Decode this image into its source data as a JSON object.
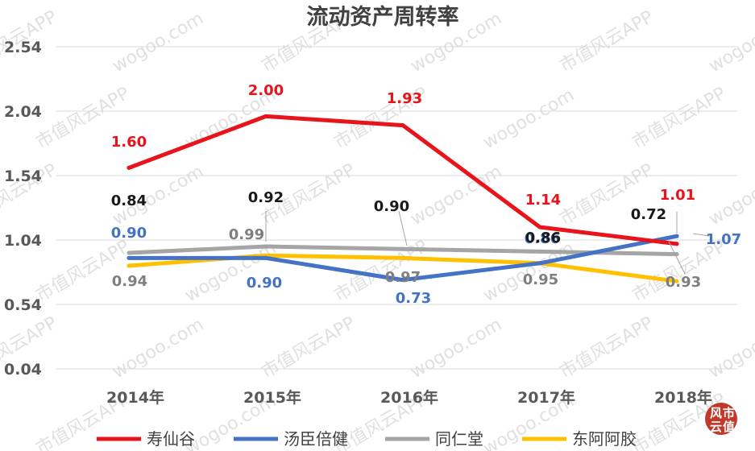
{
  "chart_data": {
    "type": "line",
    "title": "流动资产周转率",
    "xlabel": "",
    "ylabel": "",
    "categories": [
      "2014年",
      "2015年",
      "2016年",
      "2017年",
      "2018年"
    ],
    "yticks": [
      "0.04",
      "0.54",
      "1.04",
      "1.54",
      "2.04",
      "2.54"
    ],
    "ylim": [
      0.04,
      2.54
    ],
    "grid": true,
    "legend_position": "bottom",
    "series": [
      {
        "name": "寿仙谷",
        "color": "#e8141b",
        "values": [
          1.6,
          2.0,
          1.93,
          1.14,
          1.01
        ],
        "labels": [
          "1.60",
          "2.00",
          "1.93",
          "1.14",
          "1.01"
        ]
      },
      {
        "name": "汤臣倍健",
        "color": "#4472c4",
        "values": [
          0.9,
          0.9,
          0.73,
          0.86,
          1.07
        ],
        "labels": [
          "0.90",
          "0.90",
          "0.73",
          "0.86",
          "1.07"
        ]
      },
      {
        "name": "同仁堂",
        "color": "#a5a5a5",
        "values": [
          0.94,
          0.99,
          0.97,
          0.95,
          0.93
        ],
        "labels": [
          "0.94",
          "0.99",
          "0.97",
          "0.95",
          "0.93"
        ]
      },
      {
        "name": "东阿阿胶",
        "color": "#ffc000",
        "values": [
          0.84,
          0.92,
          0.9,
          0.86,
          0.72
        ],
        "labels": [
          "0.84",
          "0.92",
          "0.90",
          "0.86",
          "0.72"
        ]
      }
    ],
    "annotations": [
      "0.84",
      "0.92",
      "0.90",
      "0.86",
      "0.72"
    ]
  },
  "watermark": {
    "text_a": "市值风云APP",
    "text_b": "wogoo.com"
  },
  "seal": {
    "char1": "风",
    "char2": "云",
    "char3": "市",
    "char4": "值",
    "color": "#c0392b"
  }
}
